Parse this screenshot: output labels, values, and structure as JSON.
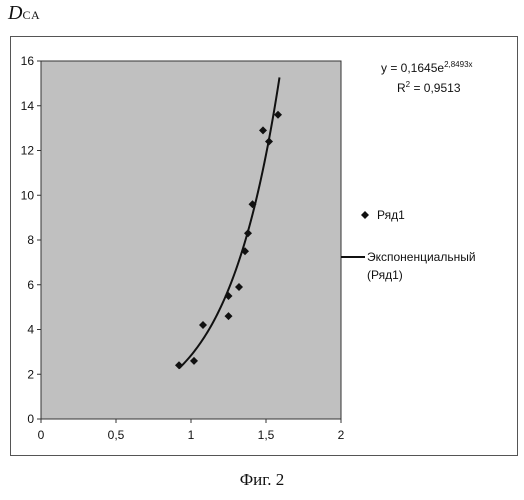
{
  "outer_label": {
    "main": "D",
    "sub": "CA"
  },
  "caption": "Фиг. 2",
  "chart_data": {
    "type": "scatter",
    "x_ticks": [
      "0",
      "0,5",
      "1",
      "1,5",
      "2"
    ],
    "y_ticks": [
      "0",
      "2",
      "4",
      "6",
      "8",
      "10",
      "12",
      "14",
      "16"
    ],
    "xlim": [
      0,
      2
    ],
    "ylim": [
      0,
      16
    ],
    "grid": false,
    "legend_position": "right",
    "plot_background": "#c0c0c0",
    "marker_color": "#111111",
    "series": [
      {
        "name": "Ряд1",
        "x": [
          0.92,
          1.02,
          1.08,
          1.25,
          1.25,
          1.32,
          1.36,
          1.38,
          1.41,
          1.48,
          1.52,
          1.58
        ],
        "y": [
          2.4,
          2.6,
          4.2,
          5.5,
          4.6,
          5.9,
          7.5,
          8.3,
          9.6,
          12.9,
          12.4,
          13.6
        ]
      }
    ],
    "trendline": {
      "name": "Экспоненциальный",
      "name_line2": "(Ряд1)",
      "a": 0.1645,
      "b": 2.8493,
      "x_range": [
        0.92,
        1.59
      ]
    },
    "equation": {
      "y_text": "y = 0,1645e",
      "exponent_text": "2,8493x",
      "r2_text": "R",
      "r2_sup": "2",
      "r2_value": " = 0,9513"
    }
  }
}
